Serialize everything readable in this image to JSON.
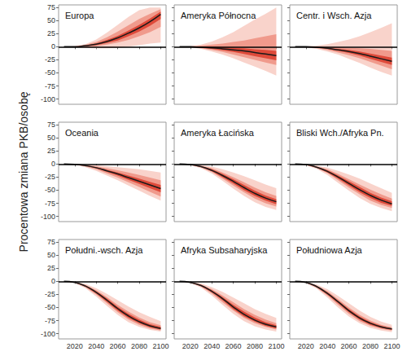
{
  "chart_data": [
    {
      "type": "line",
      "title": "Europa",
      "tick_labels": "y",
      "x": [
        2010,
        2020,
        2030,
        2040,
        2050,
        2060,
        2070,
        2080,
        2090,
        2100
      ],
      "values": [
        0,
        0,
        2,
        5,
        10,
        17,
        26,
        36,
        48,
        62
      ],
      "color": "#1a1a1a",
      "bands": [
        {
          "lower": [
            0,
            -1,
            -2,
            -3,
            -3,
            -2,
            0,
            3,
            6,
            8
          ],
          "upper": [
            0,
            1,
            5,
            14,
            27,
            42,
            57,
            70,
            75,
            75
          ],
          "color": "#f9d3cb"
        },
        {
          "lower": [
            0,
            -0.5,
            0,
            1,
            4,
            8,
            13,
            20,
            28,
            38
          ],
          "upper": [
            0,
            0.5,
            3.5,
            9,
            18,
            29,
            41,
            53,
            63,
            72
          ],
          "color": "#f09a8c"
        },
        {
          "lower": [
            0,
            0,
            1,
            3,
            7,
            12,
            20,
            29,
            40,
            53
          ],
          "upper": [
            0,
            0,
            2.5,
            6.5,
            13,
            21,
            31,
            42,
            54,
            67
          ],
          "color": "#de4a3a"
        }
      ],
      "hline": 0,
      "xlim": [
        2005,
        2105
      ],
      "xticks": [
        2020,
        2040,
        2060,
        2080,
        2100
      ],
      "ylim": [
        -110,
        80
      ],
      "yticks": [
        -100,
        -75,
        -50,
        -25,
        0,
        25,
        50,
        75
      ],
      "grid": false
    },
    {
      "type": "line",
      "title": "Ameryka Północna",
      "tick_labels": false,
      "x": [
        2010,
        2020,
        2030,
        2040,
        2050,
        2060,
        2070,
        2080,
        2090,
        2100
      ],
      "values": [
        0,
        0,
        -1,
        -2,
        -4,
        -6,
        -8,
        -11,
        -14,
        -17
      ],
      "color": "#1a1a1a",
      "bands": [
        {
          "lower": [
            0,
            -1,
            -4,
            -9,
            -15,
            -22,
            -30,
            -38,
            -46,
            -55
          ],
          "upper": [
            0,
            1,
            4,
            10,
            18,
            28,
            40,
            52,
            63,
            75
          ],
          "color": "#f9d3cb"
        },
        {
          "lower": [
            0,
            -0.5,
            -3,
            -6,
            -10,
            -15,
            -20,
            -25,
            -30,
            -35
          ],
          "upper": [
            0,
            0.5,
            2,
            4,
            6,
            9,
            12,
            16,
            20,
            24
          ],
          "color": "#f09a8c"
        },
        {
          "lower": [
            0,
            -0.5,
            -2,
            -4,
            -7,
            -10,
            -14,
            -18,
            -22,
            -26
          ],
          "upper": [
            0,
            0,
            0,
            0,
            -1,
            -2,
            -3,
            -5,
            -6,
            -8
          ],
          "color": "#de4a3a"
        }
      ],
      "hline": 0,
      "xlim": [
        2005,
        2105
      ],
      "xticks": [
        2020,
        2040,
        2060,
        2080,
        2100
      ],
      "ylim": [
        -110,
        80
      ],
      "yticks": [
        -100,
        -75,
        -50,
        -25,
        0,
        25,
        50,
        75
      ],
      "grid": false
    },
    {
      "type": "line",
      "title": "Centr. i Wsch. Azja",
      "tick_labels": false,
      "x": [
        2010,
        2020,
        2030,
        2040,
        2050,
        2060,
        2070,
        2080,
        2090,
        2100
      ],
      "values": [
        0,
        0,
        -1,
        -3,
        -6,
        -9,
        -13,
        -18,
        -23,
        -28
      ],
      "color": "#1a1a1a",
      "bands": [
        {
          "lower": [
            0,
            -1,
            -4,
            -9,
            -15,
            -23,
            -31,
            -40,
            -48,
            -55
          ],
          "upper": [
            0,
            0.5,
            2,
            5,
            9,
            14,
            20,
            28,
            36,
            45
          ],
          "color": "#f9d3cb"
        },
        {
          "lower": [
            0,
            -0.5,
            -2.5,
            -6,
            -11,
            -16,
            -22,
            -29,
            -36,
            -43
          ],
          "upper": [
            0,
            0,
            0,
            -0.5,
            -1,
            -2,
            -3,
            -4,
            -6,
            -8
          ],
          "color": "#f09a8c"
        },
        {
          "lower": [
            0,
            -0.5,
            -1.5,
            -4,
            -8,
            -12,
            -17,
            -23,
            -29,
            -35
          ],
          "upper": [
            0,
            0,
            -0.5,
            -2,
            -4,
            -6,
            -9,
            -13,
            -17,
            -21
          ],
          "color": "#de4a3a"
        }
      ],
      "hline": 0,
      "xlim": [
        2005,
        2105
      ],
      "xticks": [
        2020,
        2040,
        2060,
        2080,
        2100
      ],
      "ylim": [
        -110,
        80
      ],
      "yticks": [
        -100,
        -75,
        -50,
        -25,
        0,
        25,
        50,
        75
      ],
      "grid": false
    },
    {
      "type": "line",
      "title": "Oceania",
      "tick_labels": "y",
      "ylabel": "Procentowa zmiana PKB/osobę",
      "x": [
        2010,
        2020,
        2030,
        2040,
        2050,
        2060,
        2070,
        2080,
        2090,
        2100
      ],
      "values": [
        0,
        -0.5,
        -3,
        -7,
        -13,
        -19,
        -26,
        -33,
        -40,
        -47
      ],
      "color": "#1a1a1a",
      "bands": [
        {
          "lower": [
            0,
            -1,
            -6,
            -13,
            -22,
            -31,
            -41,
            -51,
            -61,
            -70
          ],
          "upper": [
            0,
            0,
            -1,
            -2,
            -4,
            -6,
            -8,
            -10,
            -13,
            -16
          ],
          "color": "#f9d3cb"
        },
        {
          "lower": [
            0,
            -0.8,
            -4.5,
            -10,
            -18,
            -26,
            -35,
            -44,
            -53,
            -62
          ],
          "upper": [
            0,
            -0.3,
            -2,
            -4.5,
            -8,
            -12,
            -16,
            -21,
            -26,
            -31
          ],
          "color": "#f09a8c"
        },
        {
          "lower": [
            0,
            -0.6,
            -3.5,
            -8,
            -15,
            -22,
            -30,
            -38,
            -46,
            -54
          ],
          "upper": [
            0,
            -0.4,
            -2.5,
            -6,
            -11,
            -16,
            -22,
            -28,
            -34,
            -40
          ],
          "color": "#de4a3a"
        }
      ],
      "hline": 0,
      "xlim": [
        2005,
        2105
      ],
      "xticks": [
        2020,
        2040,
        2060,
        2080,
        2100
      ],
      "ylim": [
        -110,
        80
      ],
      "yticks": [
        -100,
        -75,
        -50,
        -25,
        0,
        25,
        50,
        75
      ],
      "grid": false
    },
    {
      "type": "line",
      "title": "Ameryka Łacińska",
      "tick_labels": false,
      "x": [
        2010,
        2020,
        2030,
        2040,
        2050,
        2060,
        2070,
        2080,
        2090,
        2100
      ],
      "values": [
        0,
        -1,
        -5,
        -12,
        -22,
        -33,
        -45,
        -56,
        -65,
        -72
      ],
      "color": "#1a1a1a",
      "bands": [
        {
          "lower": [
            0,
            -2,
            -8,
            -18,
            -32,
            -47,
            -61,
            -73,
            -82,
            -88
          ],
          "upper": [
            0,
            -0.5,
            -2,
            -5,
            -10,
            -16,
            -23,
            -31,
            -39,
            -46
          ],
          "color": "#f9d3cb"
        },
        {
          "lower": [
            0,
            -1.5,
            -6.5,
            -15,
            -28,
            -41,
            -54,
            -66,
            -75,
            -81
          ],
          "upper": [
            0,
            -0.7,
            -3.5,
            -8,
            -16,
            -25,
            -35,
            -45,
            -54,
            -61
          ],
          "color": "#f09a8c"
        },
        {
          "lower": [
            0,
            -1.2,
            -5.8,
            -14,
            -25,
            -37,
            -50,
            -61,
            -70,
            -77
          ],
          "upper": [
            0,
            -0.9,
            -4.2,
            -10,
            -19,
            -29,
            -40,
            -51,
            -60,
            -67
          ],
          "color": "#de4a3a"
        }
      ],
      "hline": 0,
      "xlim": [
        2005,
        2105
      ],
      "xticks": [
        2020,
        2040,
        2060,
        2080,
        2100
      ],
      "ylim": [
        -110,
        80
      ],
      "yticks": [
        -100,
        -75,
        -50,
        -25,
        0,
        25,
        50,
        75
      ],
      "grid": false
    },
    {
      "type": "line",
      "title": "Bliski Wch./Afryka Pn.",
      "tick_labels": false,
      "x": [
        2010,
        2020,
        2030,
        2040,
        2050,
        2060,
        2070,
        2080,
        2090,
        2100
      ],
      "values": [
        0,
        -1,
        -6,
        -14,
        -25,
        -37,
        -49,
        -60,
        -69,
        -76
      ],
      "color": "#1a1a1a",
      "bands": [
        {
          "lower": [
            0,
            -2,
            -9,
            -21,
            -36,
            -51,
            -65,
            -76,
            -84,
            -90
          ],
          "upper": [
            0,
            -0.5,
            -3,
            -7,
            -13,
            -20,
            -28,
            -37,
            -46,
            -55
          ],
          "color": "#f9d3cb"
        },
        {
          "lower": [
            0,
            -1.6,
            -7.5,
            -17,
            -31,
            -45,
            -58,
            -70,
            -78,
            -84
          ],
          "upper": [
            0,
            -0.7,
            -4.5,
            -10,
            -19,
            -29,
            -39,
            -49,
            -58,
            -66
          ],
          "color": "#f09a8c"
        },
        {
          "lower": [
            0,
            -1.2,
            -6.8,
            -16,
            -28,
            -41,
            -54,
            -65,
            -74,
            -80
          ],
          "upper": [
            0,
            -0.9,
            -5.2,
            -12,
            -22,
            -33,
            -44,
            -55,
            -64,
            -71
          ],
          "color": "#de4a3a"
        }
      ],
      "hline": 0,
      "xlim": [
        2005,
        2105
      ],
      "xticks": [
        2020,
        2040,
        2060,
        2080,
        2100
      ],
      "ylim": [
        -110,
        80
      ],
      "yticks": [
        -100,
        -75,
        -50,
        -25,
        0,
        25,
        50,
        75
      ],
      "grid": false
    },
    {
      "type": "line",
      "title": "Południ.-wsch. Azja",
      "x": [
        2010,
        2020,
        2030,
        2040,
        2050,
        2060,
        2070,
        2080,
        2090,
        2100
      ],
      "values": [
        0,
        -2,
        -9,
        -21,
        -36,
        -52,
        -66,
        -77,
        -85,
        -90
      ],
      "color": "#1a1a1a",
      "bands": [
        {
          "lower": [
            0,
            -3,
            -13,
            -29,
            -47,
            -64,
            -78,
            -87,
            -93,
            -96
          ],
          "upper": [
            0,
            -1,
            -5,
            -13,
            -24,
            -36,
            -48,
            -59,
            -68,
            -76
          ],
          "color": "#f9d3cb"
        },
        {
          "lower": [
            0,
            -2.5,
            -11,
            -25,
            -42,
            -59,
            -73,
            -83,
            -90,
            -94
          ],
          "upper": [
            0,
            -1.5,
            -7,
            -17,
            -30,
            -45,
            -58,
            -69,
            -78,
            -84
          ],
          "color": "#f09a8c"
        },
        {
          "lower": [
            0,
            -2.2,
            -10,
            -23,
            -39,
            -56,
            -70,
            -80,
            -88,
            -92
          ],
          "upper": [
            0,
            -1.8,
            -8,
            -19,
            -33,
            -49,
            -62,
            -73,
            -82,
            -87
          ],
          "color": "#de4a3a"
        }
      ],
      "hline": 0,
      "xlim": [
        2005,
        2105
      ],
      "xticks": [
        2020,
        2040,
        2060,
        2080,
        2100
      ],
      "ylim": [
        -110,
        80
      ],
      "yticks": [
        -100,
        -75,
        -50,
        -25,
        0,
        25,
        50,
        75
      ],
      "grid": false
    },
    {
      "type": "line",
      "title": "Afryka Subsaharyjska",
      "tick_labels": "x",
      "x": [
        2010,
        2020,
        2030,
        2040,
        2050,
        2060,
        2070,
        2080,
        2090,
        2100
      ],
      "values": [
        0,
        -2,
        -8,
        -19,
        -33,
        -49,
        -63,
        -74,
        -82,
        -87
      ],
      "color": "#1a1a1a",
      "bands": [
        {
          "lower": [
            0,
            -3,
            -12,
            -27,
            -45,
            -62,
            -76,
            -86,
            -92,
            -96
          ],
          "upper": [
            0,
            -1,
            -4,
            -11,
            -20,
            -31,
            -42,
            -53,
            -62,
            -70
          ],
          "color": "#f9d3cb"
        },
        {
          "lower": [
            0,
            -2.5,
            -10,
            -23,
            -40,
            -56,
            -70,
            -80,
            -87,
            -92
          ],
          "upper": [
            0,
            -1.5,
            -6,
            -15,
            -27,
            -40,
            -53,
            -64,
            -73,
            -80
          ],
          "color": "#f09a8c"
        },
        {
          "lower": [
            0,
            -2.2,
            -9,
            -21,
            -36,
            -53,
            -67,
            -77,
            -85,
            -90
          ],
          "upper": [
            0,
            -1.8,
            -7,
            -17,
            -30,
            -45,
            -58,
            -69,
            -78,
            -84
          ],
          "color": "#de4a3a"
        }
      ],
      "hline": 0,
      "xlim": [
        2005,
        2105
      ],
      "xticks": [
        2020,
        2040,
        2060,
        2080,
        2100
      ],
      "ylim": [
        -110,
        80
      ],
      "yticks": [
        -100,
        -75,
        -50,
        -25,
        0,
        25,
        50,
        75
      ],
      "grid": false
    },
    {
      "type": "line",
      "title": "Południowa Azja",
      "tick_labels": "x",
      "x": [
        2010,
        2020,
        2030,
        2040,
        2050,
        2060,
        2070,
        2080,
        2090,
        2100
      ],
      "values": [
        0,
        -2,
        -10,
        -23,
        -39,
        -56,
        -70,
        -80,
        -87,
        -91
      ],
      "color": "#1a1a1a",
      "bands": [
        {
          "lower": [
            0,
            -3,
            -14,
            -31,
            -50,
            -67,
            -80,
            -89,
            -94,
            -97
          ],
          "upper": [
            0,
            -1,
            -6,
            -15,
            -28,
            -42,
            -56,
            -68,
            -77,
            -83
          ],
          "color": "#f9d3cb"
        },
        {
          "lower": [
            0,
            -2.5,
            -12,
            -27,
            -45,
            -62,
            -76,
            -85,
            -91,
            -94
          ],
          "upper": [
            0,
            -1.5,
            -8,
            -19,
            -34,
            -50,
            -64,
            -75,
            -83,
            -88
          ],
          "color": "#f09a8c"
        },
        {
          "lower": [
            0,
            -2.2,
            -11,
            -25,
            -42,
            -59,
            -73,
            -83,
            -89,
            -93
          ],
          "upper": [
            0,
            -1.8,
            -9,
            -21,
            -37,
            -53,
            -67,
            -78,
            -85,
            -90
          ],
          "color": "#de4a3a"
        }
      ],
      "hline": 0,
      "xlim": [
        2005,
        2105
      ],
      "xticks": [
        2020,
        2040,
        2060,
        2080,
        2100
      ],
      "ylim": [
        -110,
        80
      ],
      "yticks": [
        -100,
        -75,
        -50,
        -25,
        0,
        25,
        50,
        75
      ],
      "grid": false
    }
  ]
}
